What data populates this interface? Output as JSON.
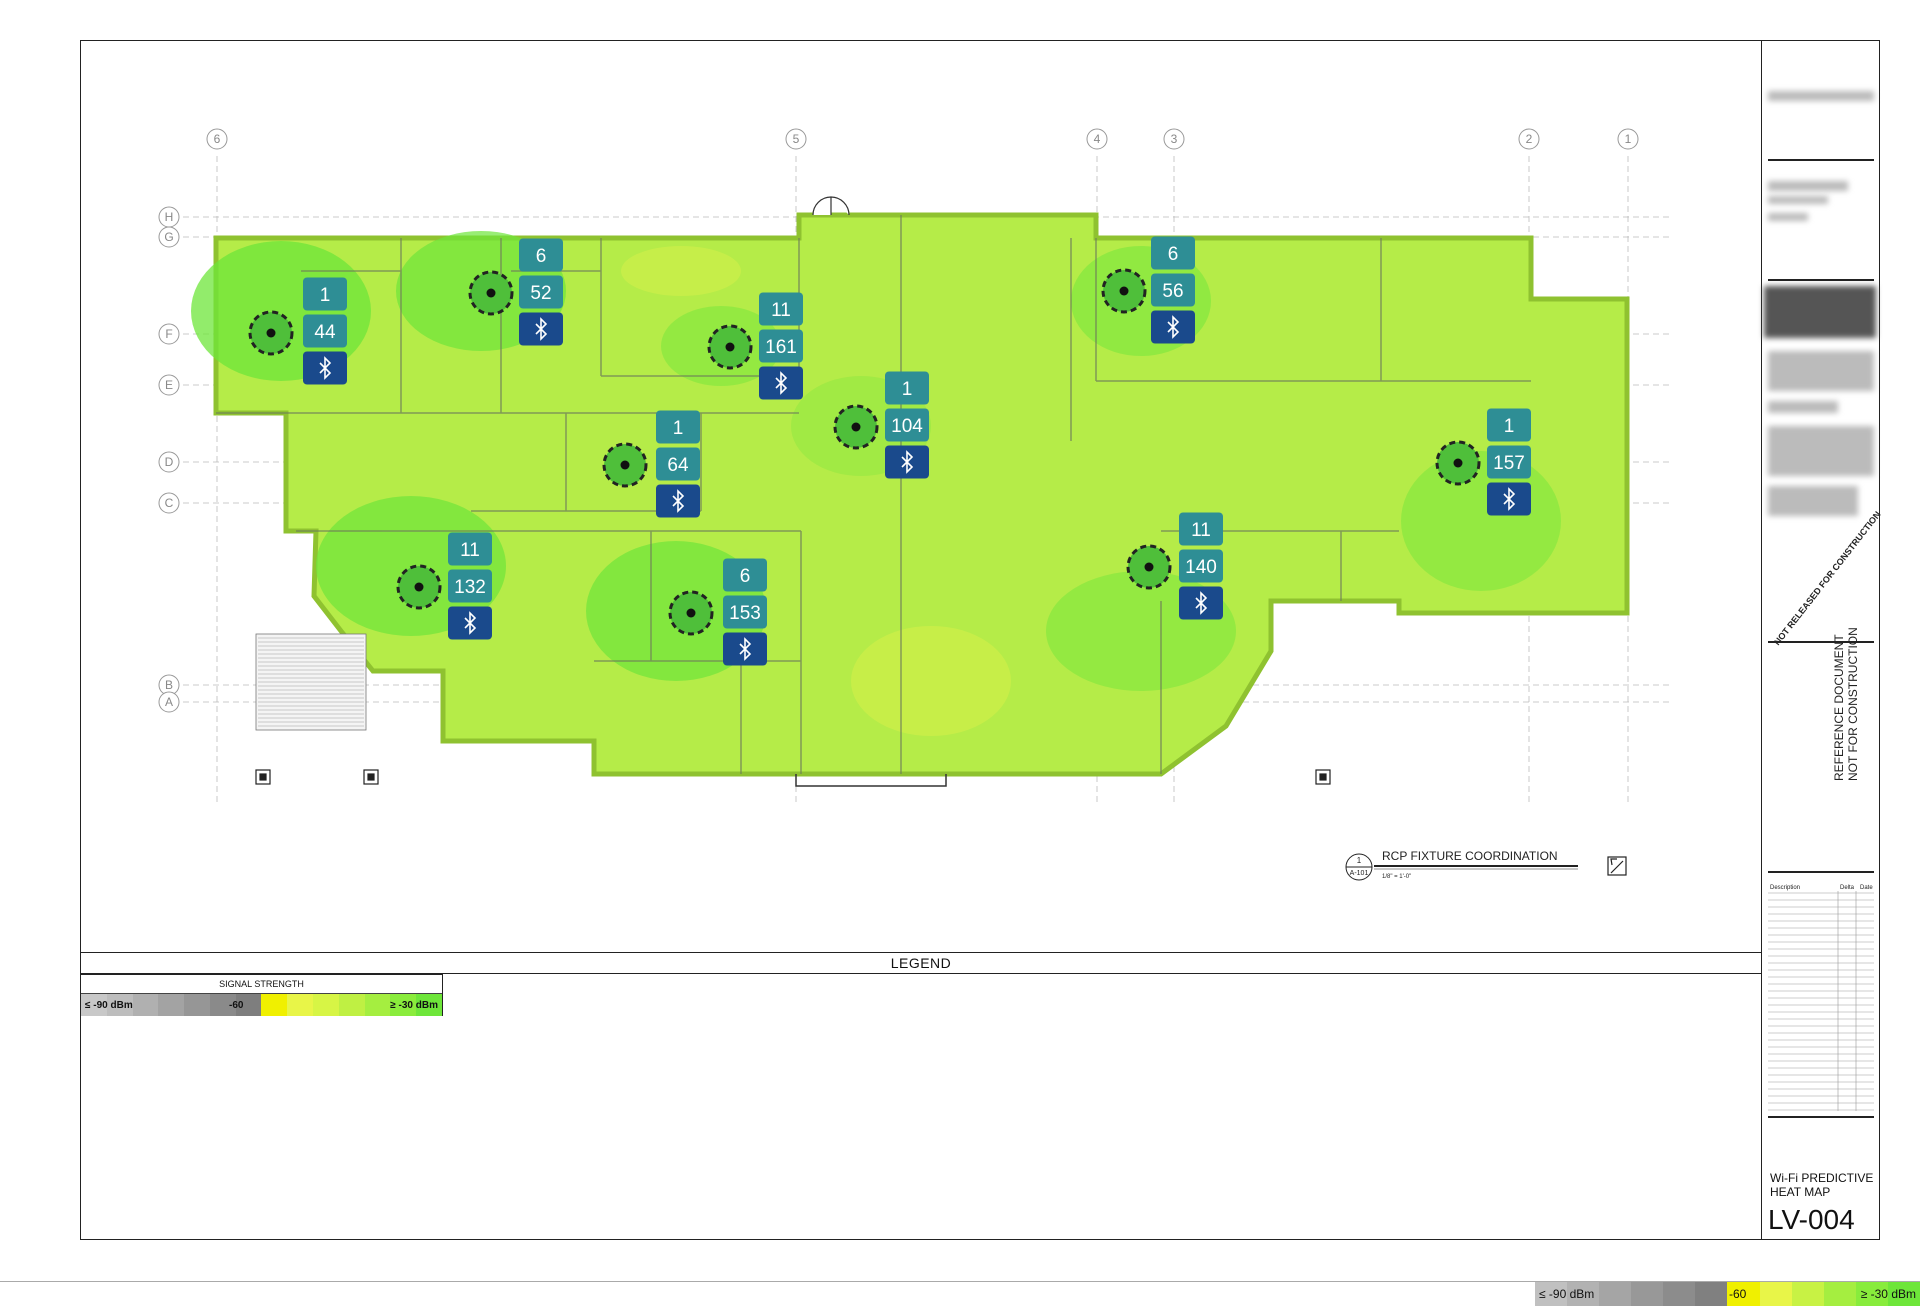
{
  "colors": {
    "heat_strong": "#6ee63a",
    "heat_mid": "#9ef043",
    "heat_weak": "#d4f04a",
    "ap_count_tile": "#2e8e95",
    "ap_ble_tile": "#1a4a8c",
    "wall": "#6f7f5a"
  },
  "grid": {
    "columns": [
      "6",
      "5",
      "4",
      "3",
      "2",
      "1"
    ],
    "rows": [
      "H",
      "G",
      "F",
      "E",
      "D",
      "C",
      "B",
      "A"
    ]
  },
  "access_points": [
    {
      "channel": "1",
      "id": "44",
      "icon": "bluetooth-icon"
    },
    {
      "channel": "6",
      "id": "52",
      "icon": "bluetooth-icon"
    },
    {
      "channel": "11",
      "id": "161",
      "icon": "bluetooth-icon"
    },
    {
      "channel": "1",
      "id": "104",
      "icon": "bluetooth-icon"
    },
    {
      "channel": "1",
      "id": "64",
      "icon": "bluetooth-icon"
    },
    {
      "channel": "6",
      "id": "56",
      "icon": "bluetooth-icon"
    },
    {
      "channel": "1",
      "id": "157",
      "icon": "bluetooth-icon"
    },
    {
      "channel": "11",
      "id": "140",
      "icon": "bluetooth-icon"
    },
    {
      "channel": "11",
      "id": "132",
      "icon": "bluetooth-icon"
    },
    {
      "channel": "6",
      "id": "153",
      "icon": "bluetooth-icon"
    }
  ],
  "drawing_title": {
    "number": "1",
    "sheet_ref": "A-101",
    "title": "RCP FIXTURE COORDINATION",
    "scale": "1/8\" = 1'-0\""
  },
  "legend": {
    "title": "LEGEND",
    "box_header": "SIGNAL STRENGTH",
    "min_label": "≤ -90 dBm",
    "mid_label": "-60",
    "max_label": "≥ -30 dBm"
  },
  "titleblock": {
    "not_released": "NOT RELEASED FOR CONSTRUCTION",
    "reference_line1": "REFERENCE DOCUMENT",
    "reference_line2": "NOT FOR CONSTRUCTION",
    "rev_description": "Description",
    "rev_delta": "Delta",
    "rev_date": "Date",
    "sheet_title_line1": "Wi-Fi PREDICTIVE",
    "sheet_title_line2": "HEAT MAP",
    "sheet_number": "LV-004"
  },
  "bottom_scale": {
    "min_label": "≤ -90 dBm",
    "mid_label": "-60",
    "max_label": "≥ -30 dBm"
  }
}
